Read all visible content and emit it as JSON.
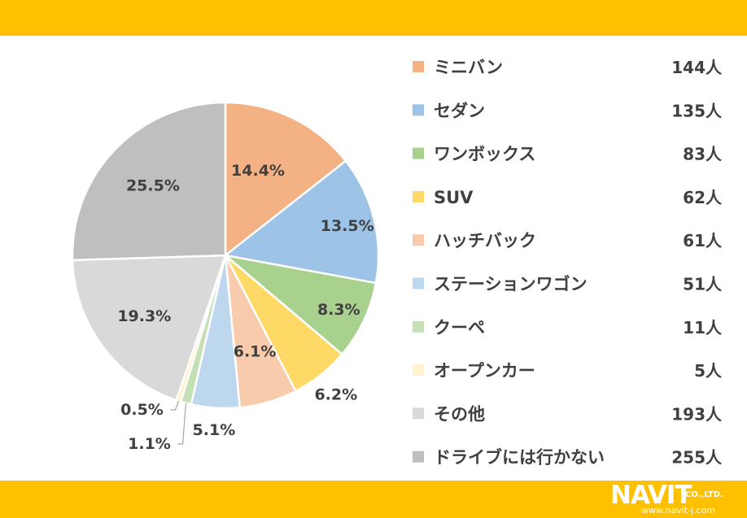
{
  "chart_data": {
    "type": "pie",
    "categories": [
      "ミニバン",
      "セダン",
      "ワンボックス",
      "SUV",
      "ハッチバック",
      "ステーションワゴン",
      "クーペ",
      "オープンカー",
      "その他",
      "ドライブには行かない"
    ],
    "values": [
      144,
      135,
      83,
      62,
      61,
      51,
      11,
      5,
      193,
      255
    ],
    "count_labels": [
      "144人",
      "135人",
      "83人",
      "62人",
      "61人",
      "51人",
      "11人",
      "5人",
      "193人",
      "255人"
    ],
    "percent_labels": [
      "14.4%",
      "13.5%",
      "8.3%",
      "6.2%",
      "6.1%",
      "5.1%",
      "1.1%",
      "0.5%",
      "19.3%",
      "25.5%"
    ],
    "colors": [
      "#F4B183",
      "#9DC3E6",
      "#A9D18E",
      "#FFD966",
      "#F8CBAD",
      "#BDD7EE",
      "#C5E0B4",
      "#FFF2CC",
      "#D9D9D9",
      "#BFBFBF"
    ],
    "legend_position": "right"
  },
  "logo": {
    "brand": "NAVIT",
    "company_suffix": "CO.,LTD.",
    "url": "www.navit-j.com"
  },
  "colors": {
    "band": "#FFC000",
    "label_text": "#404040"
  }
}
